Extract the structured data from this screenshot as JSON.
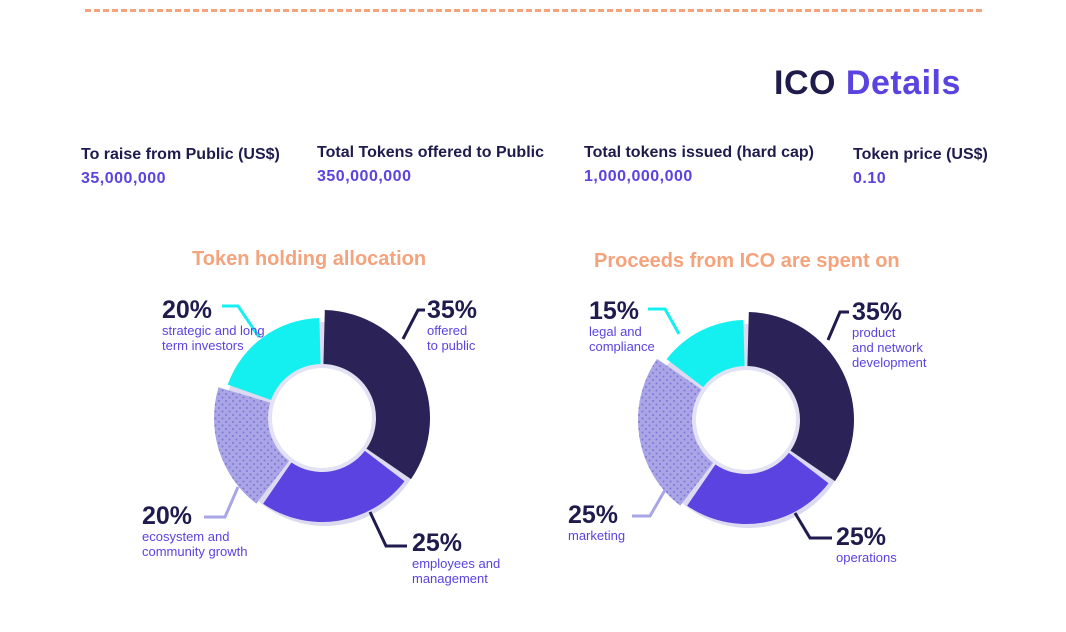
{
  "header": {
    "title_main": "ICO",
    "title_accent": "Details"
  },
  "stats": [
    {
      "label": "To raise from Public (US$)",
      "value": "35,000,000"
    },
    {
      "label": "Total Tokens offered to Public",
      "value": "350,000,000"
    },
    {
      "label": "Total tokens issued (hard cap)",
      "value": "1,000,000,000"
    },
    {
      "label": "Token price (US$)",
      "value": "0.10"
    }
  ],
  "colors": {
    "navy": "#2b2358",
    "purple": "#5a43e0",
    "lavender": "#aaa5e6",
    "cyan": "#14f0f0",
    "orange": "#f4a37c",
    "text_dark": "#1f1b4d"
  },
  "chart_data": [
    {
      "type": "pie",
      "title": "Token holding allocation",
      "slices": [
        {
          "percent": 35,
          "label": "35%",
          "caption": [
            "offered",
            "to public"
          ],
          "color": "#2b2358"
        },
        {
          "percent": 25,
          "label": "25%",
          "caption": [
            "employees and",
            "management"
          ],
          "color": "#5a43e0"
        },
        {
          "percent": 20,
          "label": "20%",
          "caption": [
            "ecosystem and",
            "community growth"
          ],
          "color": "#aaa5e6"
        },
        {
          "percent": 20,
          "label": "20%",
          "caption": [
            "strategic and long",
            "term investors"
          ],
          "color": "#14f0f0"
        }
      ]
    },
    {
      "type": "pie",
      "title": "Proceeds from ICO are spent on",
      "slices": [
        {
          "percent": 35,
          "label": "35%",
          "caption": [
            "product",
            "and network",
            "development"
          ],
          "color": "#2b2358"
        },
        {
          "percent": 25,
          "label": "25%",
          "caption": [
            "operations"
          ],
          "color": "#5a43e0"
        },
        {
          "percent": 25,
          "label": "25%",
          "caption": [
            "marketing"
          ],
          "color": "#aaa5e6"
        },
        {
          "percent": 15,
          "label": "15%",
          "caption": [
            "legal and",
            "compliance"
          ],
          "color": "#14f0f0"
        }
      ]
    }
  ]
}
